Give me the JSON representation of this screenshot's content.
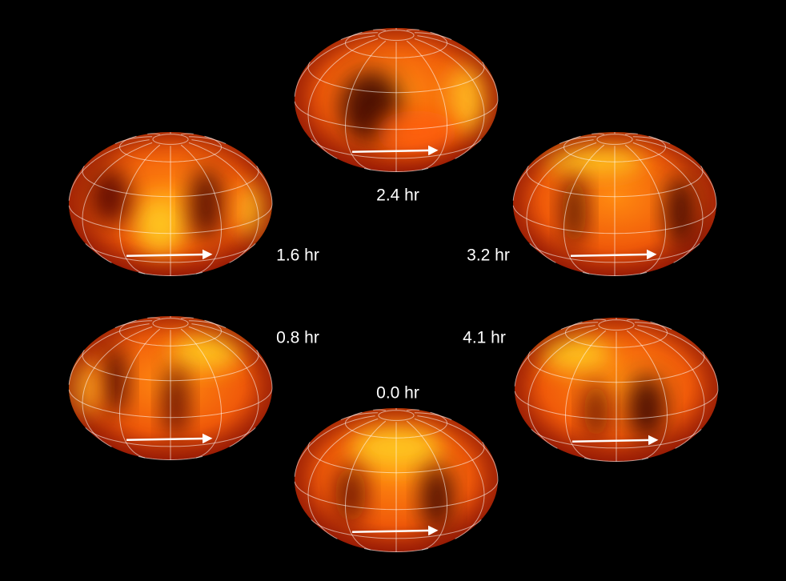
{
  "globes": [
    {
      "label": "2.4 hr"
    },
    {
      "label": "1.6 hr"
    },
    {
      "label": "3.2 hr"
    },
    {
      "label": "0.8 hr"
    },
    {
      "label": "4.1 hr"
    },
    {
      "label": "0.0 hr"
    }
  ]
}
